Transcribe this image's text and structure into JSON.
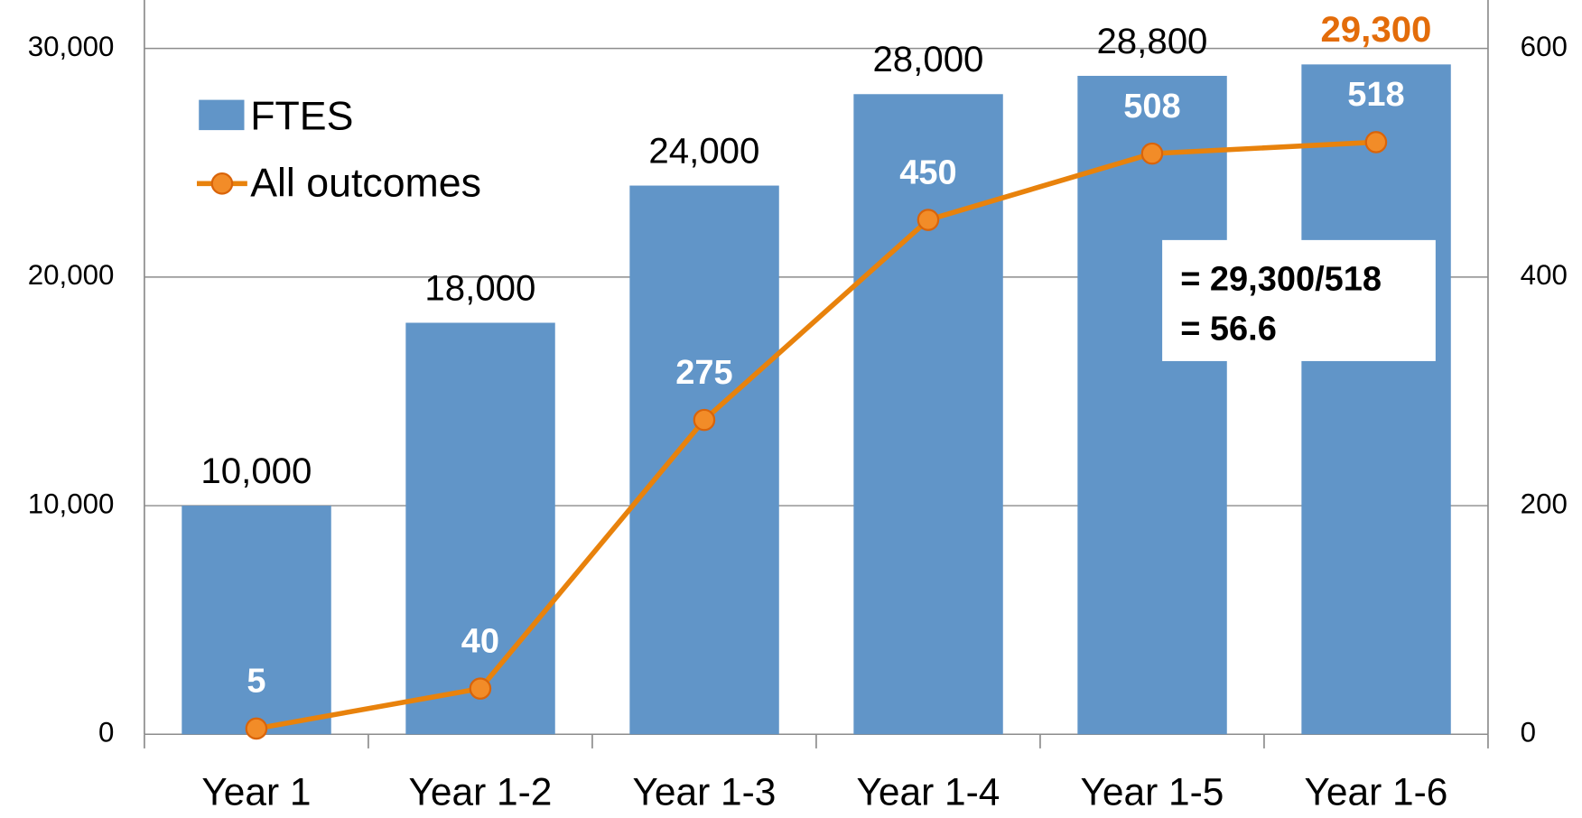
{
  "chart_data": {
    "type": "bar_line",
    "categories": [
      "Year 1",
      "Year 1-2",
      "Year 1-3",
      "Year 1-4",
      "Year 1-5",
      "Year 1-6"
    ],
    "series": [
      {
        "name": "FTES",
        "type": "bar",
        "color": "#6195c8",
        "values": [
          10000,
          18000,
          24000,
          28000,
          28800,
          29300
        ],
        "value_labels": [
          "10,000",
          "18,000",
          "24,000",
          "28,000",
          "28,800",
          "29,300"
        ],
        "value_label_colors": [
          "#000000",
          "#000000",
          "#000000",
          "#000000",
          "#000000",
          "#e36c0a"
        ]
      },
      {
        "name": "All outcomes",
        "type": "line",
        "axis": "y2",
        "color": "#e8820c",
        "marker_color": "#f28c28",
        "values": [
          5,
          40,
          275,
          450,
          508,
          518
        ]
      }
    ],
    "ylim": [
      0,
      32000
    ],
    "yticks": [
      0,
      {
        "value": 10000,
        "label": "10,000"
      },
      {
        "value": 20000,
        "label": "20,000"
      },
      {
        "value": 30000,
        "label": "30,000"
      }
    ],
    "y2lim": [
      0,
      640
    ],
    "y2ticks": [
      0,
      200,
      400,
      600
    ],
    "grid": true,
    "legend": "upper left",
    "annotation": [
      "= 29,300/518",
      "= 56.6"
    ]
  }
}
